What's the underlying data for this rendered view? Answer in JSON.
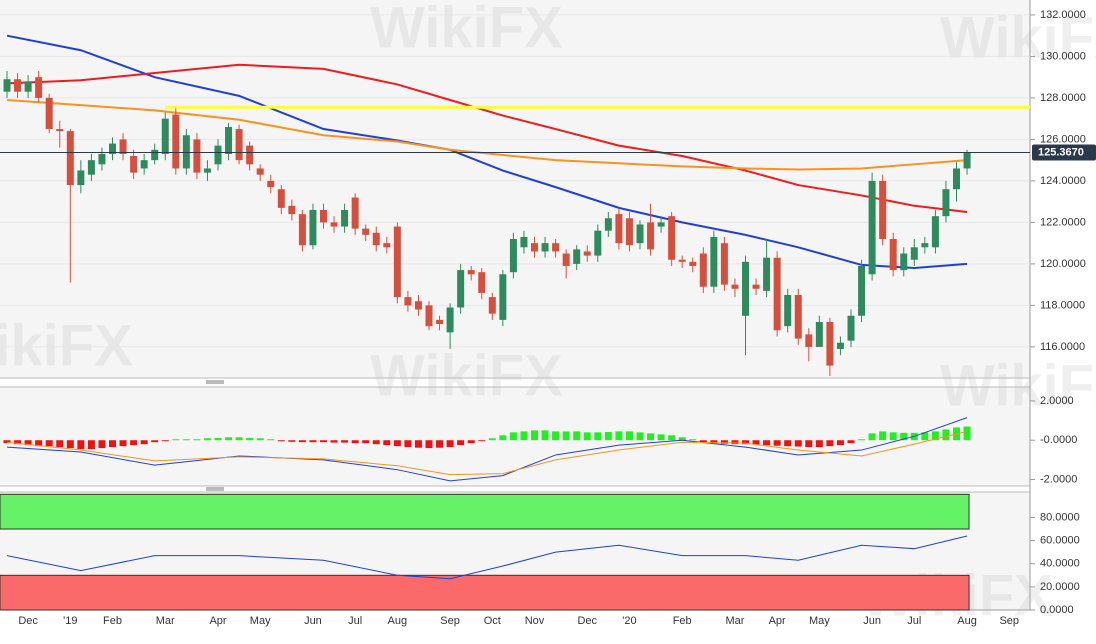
{
  "watermark": "WikiFX",
  "chart_data": [
    {
      "type": "candlestick",
      "categories": [
        null,
        null,
        "Dec",
        null,
        null,
        null,
        "'19",
        null,
        null,
        null,
        "Feb",
        null,
        null,
        null,
        null,
        "Mar",
        null,
        null,
        null,
        null,
        "Apr",
        null,
        null,
        null,
        "May",
        null,
        null,
        null,
        null,
        "Jun",
        null,
        null,
        null,
        "Jul",
        null,
        null,
        null,
        "Aug",
        null,
        null,
        null,
        null,
        "Sep",
        null,
        null,
        null,
        "Oct",
        null,
        null,
        null,
        "Nov",
        null,
        null,
        null,
        null,
        "Dec",
        null,
        null,
        null,
        "'20",
        null,
        null,
        null,
        null,
        "Feb",
        null,
        null,
        null,
        null,
        "Mar",
        null,
        null,
        null,
        "Apr",
        null,
        null,
        null,
        "May",
        null,
        null,
        null,
        null,
        "Jun",
        null,
        null,
        null,
        "Jul",
        null,
        null,
        null,
        null,
        "Aug",
        null,
        null,
        null,
        "Sep"
      ],
      "open": [
        128.3,
        128.9,
        128.3,
        129.0,
        128.0,
        126.5,
        126.4,
        123.8,
        124.3,
        124.8,
        125.3,
        126.0,
        125.2,
        124.6,
        125.0,
        125.3,
        127.2,
        124.6,
        126.0,
        124.4,
        124.8,
        125.3,
        126.5,
        125.7,
        124.6,
        124.0,
        123.6,
        122.8,
        122.4,
        120.9,
        122.6,
        122.0,
        121.8,
        123.2,
        121.7,
        121.5,
        121.0,
        121.8,
        118.4,
        118.2,
        118.0,
        117.3,
        116.7,
        117.9,
        119.7,
        119.6,
        118.4,
        117.3,
        119.6,
        120.8,
        121.0,
        120.6,
        121.0,
        120.5,
        120.0,
        120.6,
        120.4,
        121.6,
        122.4,
        122.2,
        121.0,
        122.0,
        121.8,
        122.3,
        120.2,
        120.1,
        120.5,
        118.9,
        121.0,
        119.0,
        117.5,
        119.0,
        118.7,
        120.3,
        117.0,
        118.5,
        116.6,
        116.0,
        117.2,
        115.9,
        116.3,
        117.5,
        119.5,
        124.0,
        121.2,
        119.7,
        120.2,
        120.8,
        120.8,
        122.3,
        123.6,
        124.6,
        null,
        null,
        null,
        null
      ],
      "high": [
        129.3,
        129.2,
        129.1,
        129.3,
        128.2,
        126.9,
        126.5,
        125.0,
        125.3,
        125.6,
        126.1,
        126.3,
        125.5,
        125.3,
        125.8,
        127.3,
        127.5,
        126.5,
        126.3,
        125.0,
        126.0,
        126.8,
        126.7,
        125.9,
        124.8,
        124.3,
        123.8,
        123.1,
        122.6,
        122.9,
        122.9,
        122.3,
        122.9,
        123.4,
        121.9,
        121.8,
        121.3,
        122.0,
        118.7,
        118.5,
        118.2,
        117.5,
        118.1,
        120.0,
        119.9,
        119.8,
        118.6,
        119.7,
        121.5,
        121.6,
        121.3,
        121.3,
        121.2,
        120.7,
        120.9,
        120.9,
        121.9,
        122.5,
        122.7,
        122.5,
        122.1,
        122.9,
        122.3,
        122.5,
        120.4,
        120.3,
        120.8,
        121.6,
        121.3,
        119.3,
        120.4,
        119.3,
        121.2,
        120.6,
        118.8,
        118.8,
        116.9,
        117.5,
        117.4,
        116.5,
        117.8,
        120.2,
        124.4,
        124.3,
        121.5,
        120.8,
        121.2,
        121.3,
        122.6,
        124.0,
        124.9,
        125.5,
        null,
        null,
        null,
        null
      ],
      "low": [
        128.0,
        128.0,
        128.0,
        127.8,
        126.3,
        125.6,
        119.1,
        123.4,
        124.0,
        124.5,
        125.0,
        125.0,
        124.1,
        124.3,
        124.8,
        125.0,
        124.3,
        124.3,
        124.1,
        124.0,
        124.5,
        125.0,
        124.8,
        124.5,
        124.0,
        123.4,
        122.4,
        122.1,
        120.6,
        120.7,
        121.7,
        121.5,
        121.5,
        121.4,
        121.1,
        120.6,
        120.5,
        118.1,
        117.7,
        117.5,
        116.8,
        116.8,
        115.9,
        117.6,
        119.2,
        118.3,
        117.3,
        117.0,
        119.3,
        120.5,
        120.3,
        120.3,
        120.3,
        119.3,
        119.7,
        120.1,
        120.1,
        121.3,
        120.7,
        120.6,
        120.7,
        120.4,
        121.5,
        119.9,
        119.8,
        119.6,
        118.6,
        118.6,
        118.7,
        118.4,
        115.6,
        118.5,
        118.4,
        116.5,
        116.7,
        116.1,
        115.3,
        116.0,
        114.6,
        115.6,
        116.0,
        117.2,
        119.2,
        120.9,
        119.4,
        119.4,
        119.9,
        120.5,
        120.5,
        122.0,
        123.0,
        124.3,
        null,
        null,
        null,
        null
      ],
      "close": [
        128.9,
        128.3,
        128.8,
        128.0,
        126.5,
        126.4,
        123.8,
        124.5,
        125.0,
        125.3,
        125.8,
        125.3,
        124.4,
        125.0,
        125.5,
        127.0,
        124.6,
        126.2,
        124.4,
        124.6,
        125.7,
        126.6,
        125.0,
        124.8,
        124.3,
        123.7,
        122.7,
        122.4,
        120.9,
        122.6,
        122.0,
        121.8,
        122.6,
        121.7,
        121.4,
        120.9,
        120.8,
        118.4,
        118.0,
        117.8,
        117.0,
        117.1,
        117.9,
        119.7,
        119.5,
        118.6,
        117.6,
        119.5,
        121.2,
        121.3,
        120.6,
        121.0,
        120.6,
        119.9,
        120.7,
        120.4,
        121.6,
        122.2,
        121.0,
        120.9,
        121.9,
        120.7,
        122.0,
        120.2,
        120.1,
        119.9,
        118.9,
        121.3,
        119.0,
        118.8,
        120.1,
        118.8,
        120.3,
        116.8,
        118.5,
        116.4,
        116.0,
        117.2,
        115.1,
        116.2,
        117.5,
        119.9,
        124.0,
        121.2,
        119.7,
        120.5,
        120.8,
        121.0,
        122.3,
        123.6,
        124.6,
        125.367,
        null,
        null,
        null,
        null
      ],
      "up_color": "#2f8a5e",
      "down_color": "#d4503e",
      "overlays": [
        {
          "color": "#1f3fd6",
          "x": [
            0,
            7,
            14,
            22,
            30,
            37,
            42,
            47,
            52,
            58,
            64,
            70,
            75,
            81,
            86,
            91
          ],
          "values": [
            131.0,
            130.3,
            129.0,
            128.1,
            126.5,
            125.95,
            125.5,
            124.5,
            123.7,
            122.7,
            122.0,
            121.4,
            120.8,
            119.95,
            119.8,
            120.0
          ]
        },
        {
          "color": "#ee1c1c",
          "x": [
            0,
            7,
            14,
            22,
            30,
            37,
            42,
            47,
            52,
            58,
            64,
            70,
            75,
            81,
            86,
            91
          ],
          "values": [
            128.7,
            128.85,
            129.2,
            129.6,
            129.4,
            128.65,
            127.9,
            127.15,
            126.5,
            125.7,
            125.2,
            124.5,
            123.8,
            123.3,
            122.8,
            122.5
          ]
        },
        {
          "color": "#f7931e",
          "x": [
            0,
            7,
            14,
            22,
            30,
            37,
            42,
            47,
            52,
            58,
            64,
            70,
            75,
            81,
            86,
            91
          ],
          "values": [
            127.9,
            127.65,
            127.4,
            126.95,
            126.2,
            125.9,
            125.5,
            125.25,
            125.0,
            124.85,
            124.7,
            124.6,
            124.55,
            124.6,
            124.8,
            125.0
          ]
        }
      ],
      "hline": {
        "value": 127.55,
        "from": 15,
        "color": "#ffff33"
      },
      "last_price": {
        "value": 125.367,
        "label": "125.3670"
      },
      "ylim": [
        114.5,
        132.72
      ],
      "yticks": [
        {
          "value": 116,
          "label": "116.0000"
        },
        {
          "value": 118,
          "label": "118.0000"
        },
        {
          "value": 120,
          "label": "120.0000"
        },
        {
          "value": 122,
          "label": "122.0000"
        },
        {
          "value": 124,
          "label": "124.0000"
        },
        {
          "value": 126,
          "label": "126.0000"
        },
        {
          "value": 128,
          "label": "128.0000"
        },
        {
          "value": 130,
          "label": "130.0000"
        },
        {
          "value": 132,
          "label": "132.0000"
        }
      ],
      "grid": true
    },
    {
      "type": "macd",
      "values": [
        -0.15,
        -0.2,
        -0.25,
        -0.3,
        -0.3,
        -0.35,
        -0.4,
        -0.45,
        -0.45,
        -0.4,
        -0.35,
        -0.3,
        -0.25,
        -0.2,
        -0.1,
        -0.05,
        0.05,
        0.05,
        0.05,
        0.1,
        0.12,
        0.15,
        0.15,
        0.12,
        0.1,
        0.05,
        -0.05,
        -0.08,
        -0.1,
        -0.1,
        -0.1,
        -0.12,
        -0.12,
        -0.15,
        -0.15,
        -0.2,
        -0.25,
        -0.3,
        -0.35,
        -0.38,
        -0.4,
        -0.38,
        -0.35,
        -0.25,
        -0.15,
        -0.05,
        0.1,
        0.25,
        0.4,
        0.45,
        0.5,
        0.5,
        0.45,
        0.45,
        0.45,
        0.4,
        0.4,
        0.42,
        0.45,
        0.45,
        0.4,
        0.35,
        0.3,
        0.25,
        0.15,
        0.05,
        -0.1,
        -0.15,
        -0.18,
        -0.2,
        -0.2,
        -0.22,
        -0.25,
        -0.28,
        -0.3,
        -0.32,
        -0.35,
        -0.35,
        -0.3,
        -0.25,
        -0.15,
        0.05,
        0.35,
        0.45,
        0.4,
        0.38,
        0.38,
        0.4,
        0.45,
        0.55,
        0.65,
        0.7
      ],
      "pos_color": "#22ee22",
      "neg_color": "#ee1111",
      "series": [
        {
          "color": "#1f3fd6",
          "x": [
            0,
            7,
            14,
            22,
            30,
            37,
            42,
            47,
            52,
            58,
            64,
            70,
            75,
            81,
            86,
            91
          ],
          "values": [
            -0.35,
            -0.6,
            -1.27,
            -0.8,
            -1.0,
            -1.5,
            -2.07,
            -1.8,
            -0.75,
            -0.25,
            0,
            -0.35,
            -0.75,
            -0.5,
            0.2,
            1.15
          ]
        },
        {
          "color": "#f7931e",
          "x": [
            0,
            7,
            14,
            22,
            30,
            37,
            42,
            47,
            52,
            58,
            64,
            70,
            75,
            81,
            86,
            91
          ],
          "values": [
            -0.1,
            -0.5,
            -1.05,
            -0.85,
            -0.95,
            -1.3,
            -1.75,
            -1.7,
            -1.0,
            -0.5,
            -0.1,
            -0.15,
            -0.5,
            -0.8,
            -0.2,
            0.45
          ]
        }
      ],
      "ylim": [
        -2.33,
        2.71
      ],
      "yticks": [
        {
          "value": -2,
          "label": "-2.0000"
        },
        {
          "value": 0,
          "label": "-0.0000"
        },
        {
          "value": 2,
          "label": "2.0000"
        }
      ]
    },
    {
      "type": "rsi",
      "series": [
        {
          "color": "#1f3fd6",
          "x": [
            0,
            7,
            14,
            22,
            30,
            37,
            42,
            47,
            52,
            58,
            64,
            70,
            75,
            81,
            86,
            91
          ],
          "values": [
            47,
            34,
            47,
            47,
            43,
            30,
            27,
            38,
            50,
            56,
            47,
            47,
            43,
            56,
            53,
            64
          ]
        }
      ],
      "bands": [
        {
          "from": 70,
          "to": 100,
          "color": "#66f266"
        },
        {
          "from": 0,
          "to": 30,
          "color": "#fb6a6a"
        }
      ],
      "ylim": [
        0,
        102
      ],
      "yticks": [
        {
          "value": 0,
          "label": "0.0000"
        },
        {
          "value": 20,
          "label": "20.0000"
        },
        {
          "value": 40,
          "label": "40.0000"
        },
        {
          "value": 60,
          "label": "60.0000"
        },
        {
          "value": 80,
          "label": "80.0000"
        }
      ]
    }
  ]
}
